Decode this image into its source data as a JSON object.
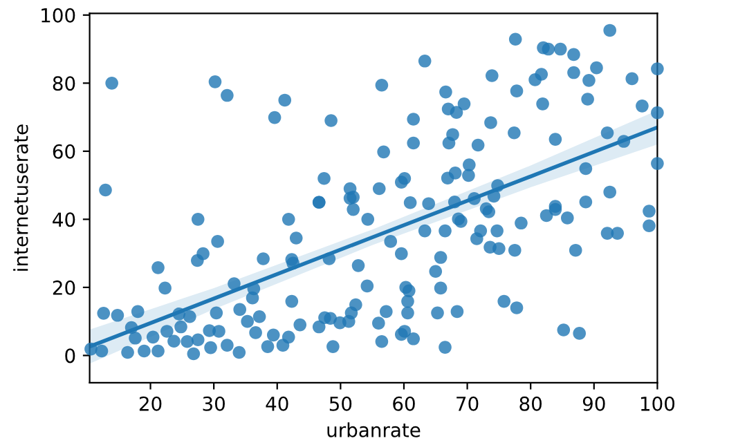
{
  "chart_data": {
    "type": "scatter",
    "xlabel": "urbanrate",
    "ylabel": "internetuserate",
    "xlim": [
      10.4,
      100
    ],
    "ylim": [
      -8,
      100.5
    ],
    "xticks": [
      20,
      30,
      40,
      50,
      60,
      70,
      80,
      90,
      100
    ],
    "yticks": [
      0,
      20,
      40,
      60,
      80,
      100
    ],
    "grid": false,
    "legend": false,
    "marker": "circle",
    "series": [
      {
        "color": "#1f77b4",
        "x": [
          13.9,
          30.2,
          32.1,
          41.2,
          39.6,
          48.5,
          12.9,
          47.4,
          51.5,
          52,
          56.1,
          56.5,
          56.8,
          46.6,
          63.3,
          77.6,
          82,
          82.8,
          84.7,
          86.8,
          92.5,
          73.9,
          80.7,
          81.7,
          86.8,
          89.2,
          90.4,
          96,
          100,
          66.6,
          77.8,
          81.9,
          89,
          97.6,
          67,
          68.3,
          69.5,
          61.5,
          73.7,
          100,
          67.7,
          67.1,
          61.5,
          71.7,
          77.4,
          83.9,
          92.1,
          94.7,
          100,
          70.3,
          68.1,
          66.9,
          70.2,
          60.1,
          59.6,
          88.7,
          74.8,
          92.5,
          61,
          63.9,
          68,
          71.1,
          74.2,
          88.7,
          83.9,
          27.5,
          41.8,
          30.6,
          43,
          46.6,
          51.5,
          52,
          54.3,
          28.3,
          27.4,
          37.8,
          42.3,
          42.5,
          48.2,
          21.2,
          52.8,
          22.3,
          33.2,
          36.3,
          36.1,
          54.2,
          42.3,
          12.6,
          14.8,
          18,
          24.5,
          26.2,
          30.4,
          34.1,
          37.2,
          52.4,
          51.7,
          17,
          22.6,
          24.8,
          29.3,
          30.8,
          35.3,
          36.6,
          43.6,
          46.6,
          47.5,
          48.4,
          49.9,
          51.3,
          56,
          17.6,
          20.4,
          23.7,
          25.8,
          27.5,
          32.1,
          39.4,
          40.9,
          41.8,
          56.5,
          10.6,
          12.3,
          16.4,
          19,
          21.2,
          26.8,
          29.5,
          34,
          38.5,
          48.8,
          73,
          73.4,
          68.6,
          69,
          72.1,
          71.5,
          74.7,
          78.5,
          82.5,
          83.9,
          85.8,
          98.7,
          98.7,
          92.1,
          93.7,
          87.1,
          77.5,
          73.6,
          75,
          63.3,
          66.5,
          57.9,
          59.6,
          65.8,
          65,
          65.8,
          60.3,
          60.8,
          60.6,
          60.6,
          57.2,
          65.3,
          68.4,
          75.8,
          77.8,
          60.1,
          59.6,
          61.5,
          66.5,
          85.2,
          87.7
        ],
        "values": [
          80,
          80.4,
          76.4,
          75,
          69.9,
          69,
          48.6,
          52,
          49,
          46.5,
          49,
          79.4,
          59.8,
          45,
          86.5,
          92.9,
          90.4,
          90,
          90,
          88.4,
          95.5,
          82.2,
          81,
          82.6,
          83.1,
          80.8,
          84.5,
          81.3,
          84.2,
          77.4,
          77.7,
          73.9,
          75.3,
          73.3,
          72.4,
          71.4,
          73.9,
          69.4,
          68.4,
          71.3,
          64.9,
          62.4,
          62.4,
          61.8,
          65.4,
          63.5,
          65.4,
          62.9,
          56.4,
          56,
          53.6,
          52.1,
          52.9,
          52,
          50.9,
          54.9,
          49.9,
          48,
          44.9,
          44.6,
          45.1,
          46.1,
          46.8,
          45.1,
          43.8,
          40,
          40,
          33.5,
          34.5,
          45,
          46.2,
          42.9,
          40,
          29.9,
          27.9,
          28.4,
          28.2,
          27.1,
          28.4,
          25.8,
          26.4,
          19.8,
          21.1,
          19.6,
          16.9,
          20.4,
          15.9,
          12.4,
          11.8,
          12.9,
          12.2,
          11.4,
          12.5,
          13.5,
          11.4,
          14.9,
          12.5,
          8.2,
          7.1,
          8.4,
          7.3,
          7.1,
          10,
          6.7,
          9,
          8.4,
          11.1,
          10.9,
          9.6,
          10,
          9.5,
          5.1,
          5.4,
          4.2,
          4.1,
          4.6,
          3,
          6,
          3,
          5.4,
          4.1,
          1.9,
          1.3,
          0.9,
          1.3,
          1.3,
          0.5,
          2.3,
          0.9,
          2.6,
          2.6,
          43.1,
          42.2,
          40.1,
          39.4,
          36.6,
          34.3,
          36.6,
          38.9,
          41.1,
          42.9,
          40.4,
          42.4,
          38.1,
          35.9,
          35.9,
          30.9,
          30.9,
          31.8,
          31.4,
          36.6,
          36.6,
          33.5,
          29.9,
          28.8,
          24.7,
          19.8,
          20,
          19,
          15.9,
          12.5,
          12.9,
          12.5,
          12.9,
          15.9,
          14,
          7.1,
          6.2,
          4.9,
          2.4,
          7.5,
          6.5
        ]
      },
      {
        "type": "line",
        "marker": "none",
        "color": "#1f77b4",
        "x": [
          10.4,
          30,
          55,
          80,
          100
        ],
        "values": [
          2.6,
          16.7,
          34.7,
          52.6,
          67
        ],
        "lower": [
          -2.4,
          13.6,
          32.4,
          49.4,
          62
        ],
        "upper": [
          7.6,
          19.8,
          37,
          55.8,
          72
        ]
      }
    ]
  }
}
